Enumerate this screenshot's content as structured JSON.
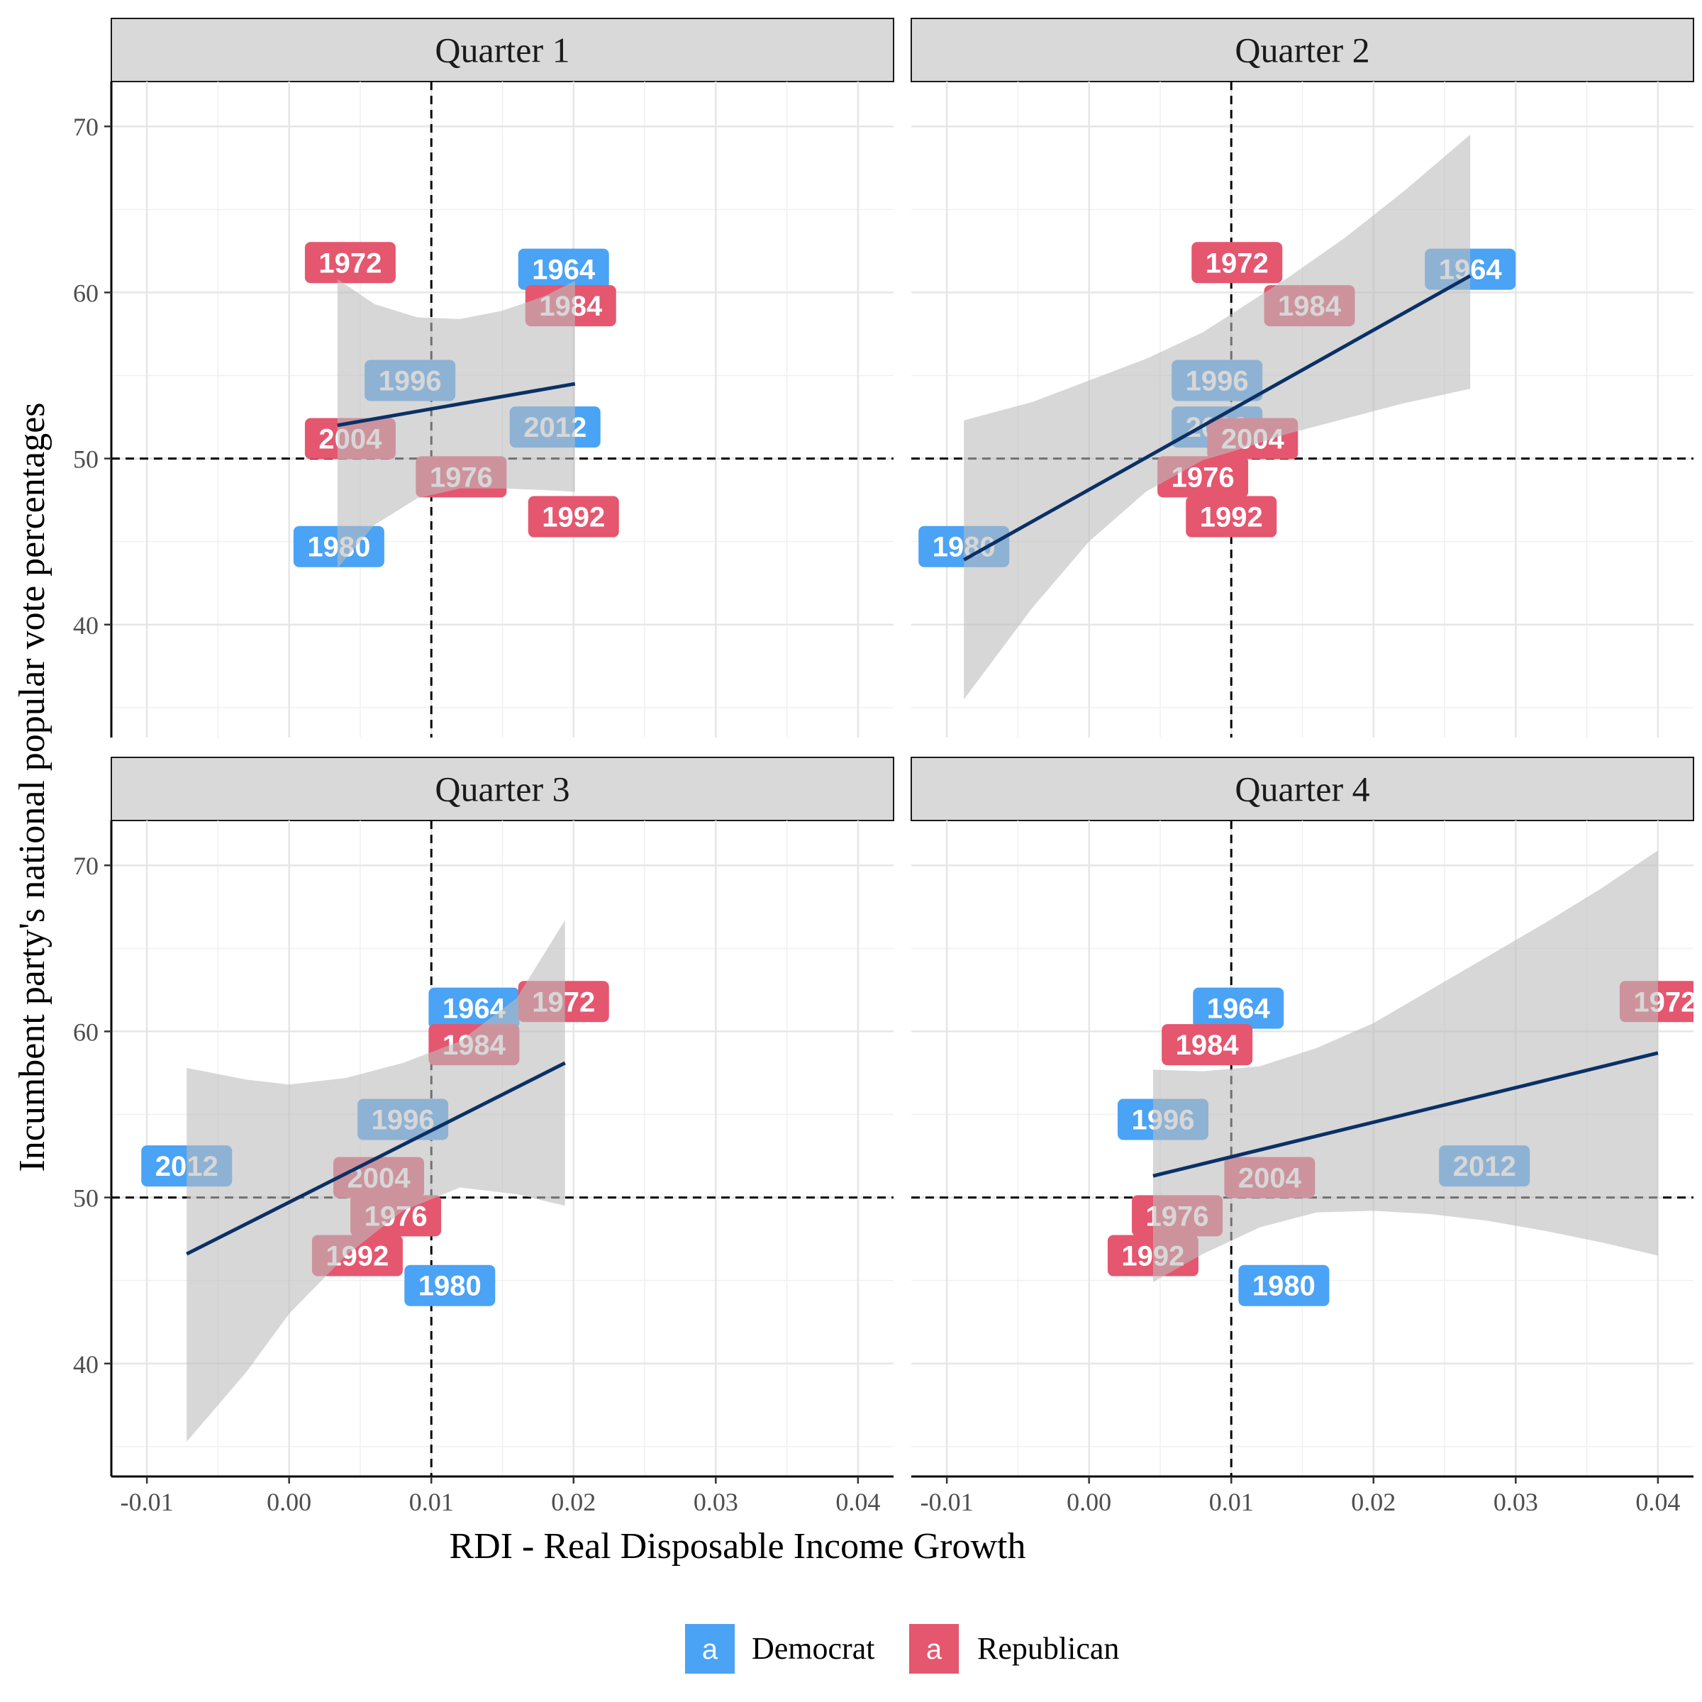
{
  "chart_data": {
    "type": "scatter",
    "xlabel": "RDI - Real Disposable Income Growth",
    "ylabel": "Incumbent party's national popular vote percentages",
    "xlim": [
      -0.0125,
      0.0425
    ],
    "ylim": [
      33.2,
      72.7
    ],
    "x_ticks": [
      "-0.01",
      "0.00",
      "0.01",
      "0.02",
      "0.03",
      "0.04"
    ],
    "x_tick_values": [
      -0.01,
      0.0,
      0.01,
      0.02,
      0.03,
      0.04
    ],
    "y_ticks": [
      "40",
      "50",
      "60",
      "70"
    ],
    "y_tick_values": [
      40,
      50,
      60,
      70
    ],
    "reference_lines": {
      "x": 0.01,
      "y": 50
    },
    "grid": true,
    "legend": {
      "position": "bottom",
      "key_glyph": "a",
      "items": [
        {
          "name": "Democrat",
          "color": "#4aa3f5"
        },
        {
          "name": "Republican",
          "color": "#e5566f"
        }
      ]
    },
    "fit_line_color": "#0a3166",
    "band_color": "#bdbdbd",
    "panels": [
      {
        "title": "Quarter 1",
        "points": [
          {
            "label": "1972",
            "party": "Republican",
            "x": 0.0043,
            "y": 61.8
          },
          {
            "label": "1964",
            "party": "Democrat",
            "x": 0.0193,
            "y": 61.4
          },
          {
            "label": "1984",
            "party": "Republican",
            "x": 0.0198,
            "y": 59.2
          },
          {
            "label": "1996",
            "party": "Democrat",
            "x": 0.0085,
            "y": 54.7
          },
          {
            "label": "2012",
            "party": "Democrat",
            "x": 0.0187,
            "y": 51.9
          },
          {
            "label": "2004",
            "party": "Republican",
            "x": 0.0043,
            "y": 51.2
          },
          {
            "label": "1976",
            "party": "Republican",
            "x": 0.0121,
            "y": 48.9
          },
          {
            "label": "1992",
            "party": "Republican",
            "x": 0.02,
            "y": 46.5
          },
          {
            "label": "1980",
            "party": "Democrat",
            "x": 0.0035,
            "y": 44.7
          }
        ],
        "fit": {
          "x0": 0.0034,
          "y0": 52.0,
          "x1": 0.0201,
          "y1": 54.5
        },
        "band_upper": [
          [
            0.0034,
            60.8
          ],
          [
            0.006,
            59.3
          ],
          [
            0.009,
            58.5
          ],
          [
            0.012,
            58.4
          ],
          [
            0.015,
            58.9
          ],
          [
            0.018,
            59.8
          ],
          [
            0.0201,
            60.7
          ]
        ],
        "band_lower": [
          [
            0.0034,
            43.4
          ],
          [
            0.006,
            46.0
          ],
          [
            0.009,
            47.6
          ],
          [
            0.012,
            48.2
          ],
          [
            0.015,
            48.2
          ],
          [
            0.018,
            48.1
          ],
          [
            0.0201,
            48.0
          ]
        ]
      },
      {
        "title": "Quarter 2",
        "points": [
          {
            "label": "1972",
            "party": "Republican",
            "x": 0.0104,
            "y": 61.8
          },
          {
            "label": "1964",
            "party": "Democrat",
            "x": 0.0268,
            "y": 61.4
          },
          {
            "label": "1984",
            "party": "Republican",
            "x": 0.0155,
            "y": 59.2
          },
          {
            "label": "1996",
            "party": "Democrat",
            "x": 0.009,
            "y": 54.7
          },
          {
            "label": "2012",
            "party": "Democrat",
            "x": 0.009,
            "y": 51.9
          },
          {
            "label": "2004",
            "party": "Republican",
            "x": 0.0115,
            "y": 51.2
          },
          {
            "label": "1976",
            "party": "Republican",
            "x": 0.008,
            "y": 48.9
          },
          {
            "label": "1992",
            "party": "Republican",
            "x": 0.01,
            "y": 46.5
          },
          {
            "label": "1980",
            "party": "Democrat",
            "x": -0.0088,
            "y": 44.7
          }
        ],
        "fit": {
          "x0": -0.0088,
          "y0": 43.9,
          "x1": 0.0268,
          "y1": 61.0
        },
        "band_upper": [
          [
            -0.0088,
            52.3
          ],
          [
            -0.004,
            53.4
          ],
          [
            0.0,
            54.7
          ],
          [
            0.004,
            56.0
          ],
          [
            0.008,
            57.6
          ],
          [
            0.01,
            58.7
          ],
          [
            0.014,
            60.9
          ],
          [
            0.018,
            63.3
          ],
          [
            0.022,
            66.0
          ],
          [
            0.0268,
            69.5
          ]
        ],
        "band_lower": [
          [
            -0.0088,
            35.5
          ],
          [
            -0.004,
            41.0
          ],
          [
            0.0,
            45.0
          ],
          [
            0.004,
            48.0
          ],
          [
            0.008,
            49.9
          ],
          [
            0.01,
            50.4
          ],
          [
            0.014,
            51.5
          ],
          [
            0.018,
            52.4
          ],
          [
            0.022,
            53.3
          ],
          [
            0.0268,
            54.2
          ]
        ]
      },
      {
        "title": "Quarter 3",
        "points": [
          {
            "label": "1964",
            "party": "Democrat",
            "x": 0.013,
            "y": 61.4
          },
          {
            "label": "1972",
            "party": "Republican",
            "x": 0.0193,
            "y": 61.8
          },
          {
            "label": "1984",
            "party": "Republican",
            "x": 0.013,
            "y": 59.2
          },
          {
            "label": "1996",
            "party": "Democrat",
            "x": 0.008,
            "y": 54.7
          },
          {
            "label": "2012",
            "party": "Democrat",
            "x": -0.0072,
            "y": 51.9
          },
          {
            "label": "2004",
            "party": "Republican",
            "x": 0.0063,
            "y": 51.2
          },
          {
            "label": "1976",
            "party": "Republican",
            "x": 0.0075,
            "y": 48.9
          },
          {
            "label": "1992",
            "party": "Republican",
            "x": 0.0048,
            "y": 46.5
          },
          {
            "label": "1980",
            "party": "Democrat",
            "x": 0.0113,
            "y": 44.7
          }
        ],
        "fit": {
          "x0": -0.0072,
          "y0": 46.6,
          "x1": 0.0194,
          "y1": 58.1
        },
        "band_upper": [
          [
            -0.0072,
            57.8
          ],
          [
            -0.003,
            57.1
          ],
          [
            0.0,
            56.8
          ],
          [
            0.004,
            57.2
          ],
          [
            0.008,
            58.1
          ],
          [
            0.012,
            59.4
          ],
          [
            0.016,
            62.0
          ],
          [
            0.0194,
            66.7
          ]
        ],
        "band_lower": [
          [
            -0.0072,
            35.3
          ],
          [
            -0.003,
            39.5
          ],
          [
            0.0,
            43.0
          ],
          [
            0.004,
            46.5
          ],
          [
            0.008,
            49.2
          ],
          [
            0.012,
            50.6
          ],
          [
            0.016,
            50.2
          ],
          [
            0.0194,
            49.5
          ]
        ]
      },
      {
        "title": "Quarter 4",
        "points": [
          {
            "label": "1964",
            "party": "Democrat",
            "x": 0.0105,
            "y": 61.4
          },
          {
            "label": "1972",
            "party": "Republican",
            "x": 0.0405,
            "y": 61.8
          },
          {
            "label": "1984",
            "party": "Republican",
            "x": 0.0083,
            "y": 59.2
          },
          {
            "label": "1996",
            "party": "Democrat",
            "x": 0.0052,
            "y": 54.7
          },
          {
            "label": "2012",
            "party": "Democrat",
            "x": 0.0278,
            "y": 51.9
          },
          {
            "label": "2004",
            "party": "Republican",
            "x": 0.0127,
            "y": 51.2
          },
          {
            "label": "1976",
            "party": "Republican",
            "x": 0.0062,
            "y": 48.9
          },
          {
            "label": "1992",
            "party": "Republican",
            "x": 0.0045,
            "y": 46.5
          },
          {
            "label": "1980",
            "party": "Democrat",
            "x": 0.0137,
            "y": 44.7
          }
        ],
        "fit": {
          "x0": 0.0045,
          "y0": 51.3,
          "x1": 0.04,
          "y1": 58.7
        },
        "band_upper": [
          [
            0.0045,
            57.7
          ],
          [
            0.008,
            57.6
          ],
          [
            0.012,
            57.9
          ],
          [
            0.016,
            59.0
          ],
          [
            0.02,
            60.5
          ],
          [
            0.024,
            62.5
          ],
          [
            0.028,
            64.5
          ],
          [
            0.032,
            66.5
          ],
          [
            0.036,
            68.6
          ],
          [
            0.04,
            70.9
          ]
        ],
        "band_lower": [
          [
            0.0045,
            44.9
          ],
          [
            0.008,
            46.6
          ],
          [
            0.012,
            48.2
          ],
          [
            0.016,
            49.1
          ],
          [
            0.02,
            49.2
          ],
          [
            0.024,
            49.0
          ],
          [
            0.028,
            48.6
          ],
          [
            0.032,
            48.0
          ],
          [
            0.036,
            47.3
          ],
          [
            0.04,
            46.5
          ]
        ]
      }
    ]
  }
}
